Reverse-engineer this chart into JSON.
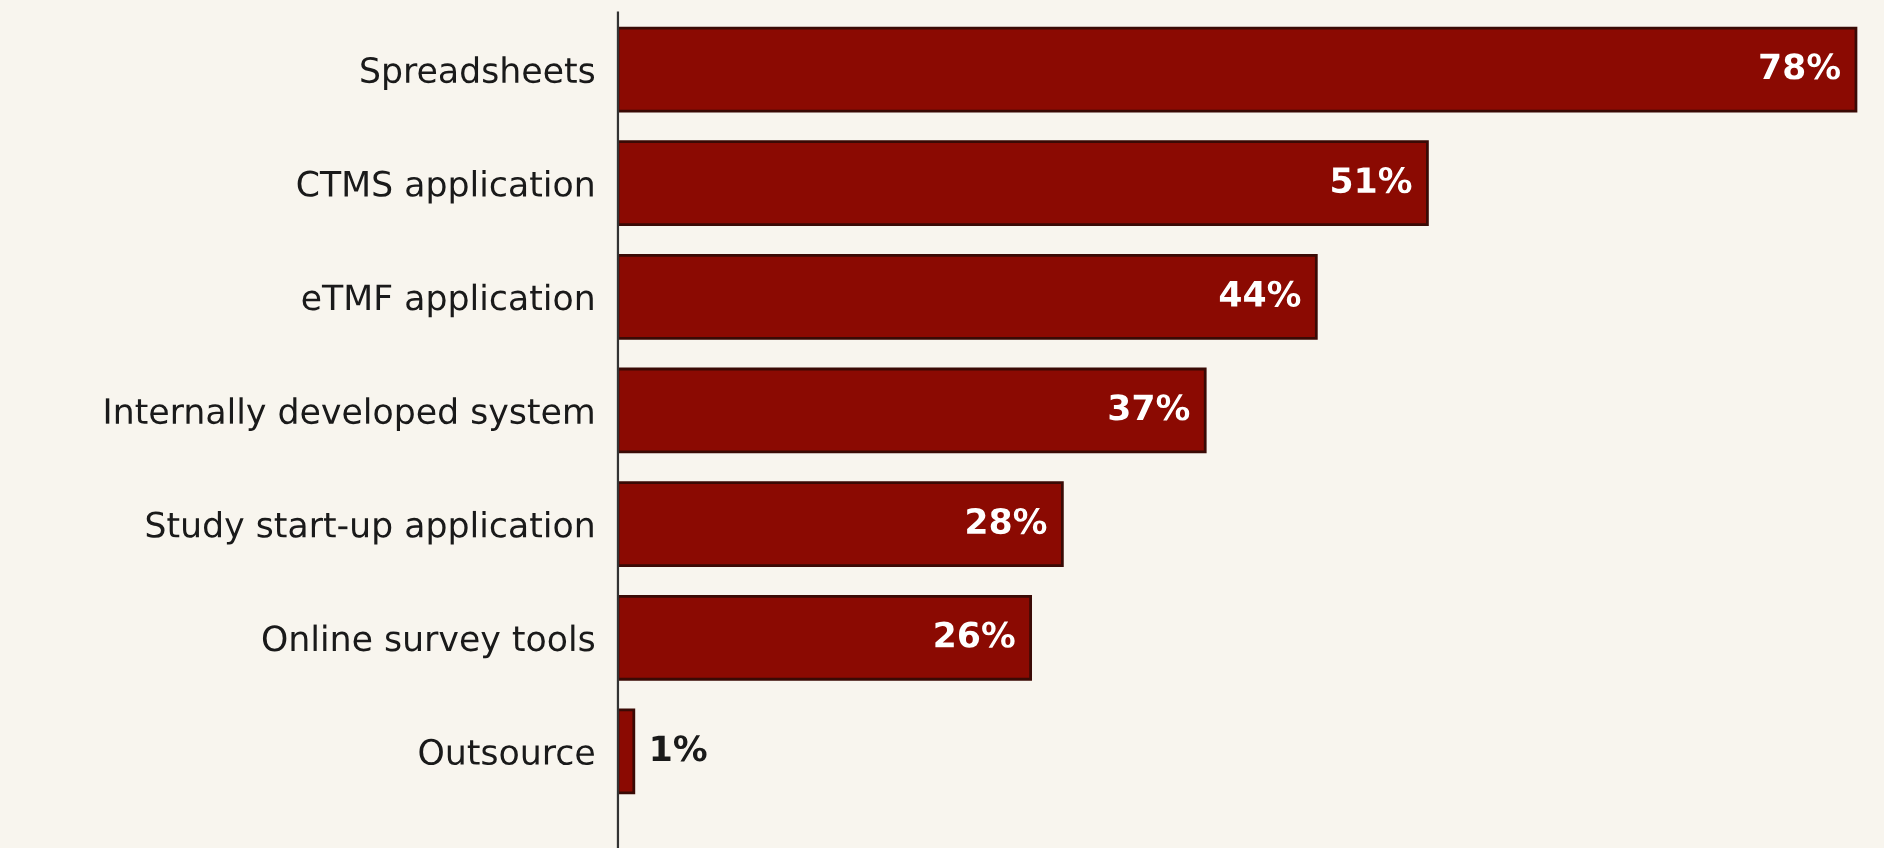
{
  "chart_data": {
    "type": "bar",
    "orientation": "horizontal",
    "categories": [
      "Spreadsheets",
      "CTMS application",
      "eTMF application",
      "Internally developed system",
      "Study start-up application",
      "Online survey tools",
      "Outsource"
    ],
    "values": [
      78,
      51,
      44,
      37,
      28,
      26,
      1
    ],
    "value_labels": [
      "78%",
      "51%",
      "44%",
      "37%",
      "28%",
      "26%",
      "1%"
    ],
    "color": "#8b0a02"
  }
}
